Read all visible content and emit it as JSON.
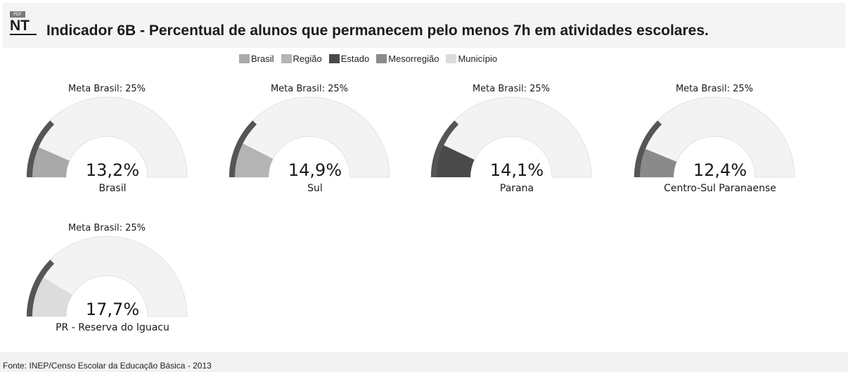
{
  "header": {
    "icon_badge": "PDF",
    "icon_text": "NT",
    "title": "Indicador 6B - Percentual de alunos que permanecem pelo menos 7h em atividades escolares."
  },
  "legend": [
    {
      "label": "Brasil",
      "color": "#a9a9a9"
    },
    {
      "label": "Região",
      "color": "#b4b4b4"
    },
    {
      "label": "Estado",
      "color": "#4a4a4a"
    },
    {
      "label": "Mesorregião",
      "color": "#8a8a8a"
    },
    {
      "label": "Município",
      "color": "#dcdcdc"
    }
  ],
  "chart_data": [
    {
      "type": "gauge",
      "meta_label": "Meta Brasil: 25%",
      "meta_value": 25,
      "value": 13.2,
      "value_label": "13,2%",
      "name": "Brasil",
      "fill_color": "#a9a9a9"
    },
    {
      "type": "gauge",
      "meta_label": "Meta Brasil: 25%",
      "meta_value": 25,
      "value": 14.9,
      "value_label": "14,9%",
      "name": "Sul",
      "fill_color": "#b4b4b4"
    },
    {
      "type": "gauge",
      "meta_label": "Meta Brasil: 25%",
      "meta_value": 25,
      "value": 14.1,
      "value_label": "14,1%",
      "name": "Parana",
      "fill_color": "#4a4a4a"
    },
    {
      "type": "gauge",
      "meta_label": "Meta Brasil: 25%",
      "meta_value": 25,
      "value": 12.4,
      "value_label": "12,4%",
      "name": "Centro-Sul Paranaense",
      "fill_color": "#8a8a8a"
    },
    {
      "type": "gauge",
      "meta_label": "Meta Brasil: 25%",
      "meta_value": 25,
      "value": 17.7,
      "value_label": "17,7%",
      "name": "PR - Reserva do Iguacu",
      "fill_color": "#dcdcdc"
    }
  ],
  "footer": {
    "source": "Fonte: INEP/Censo Escolar da Educação Básica - 2013"
  }
}
